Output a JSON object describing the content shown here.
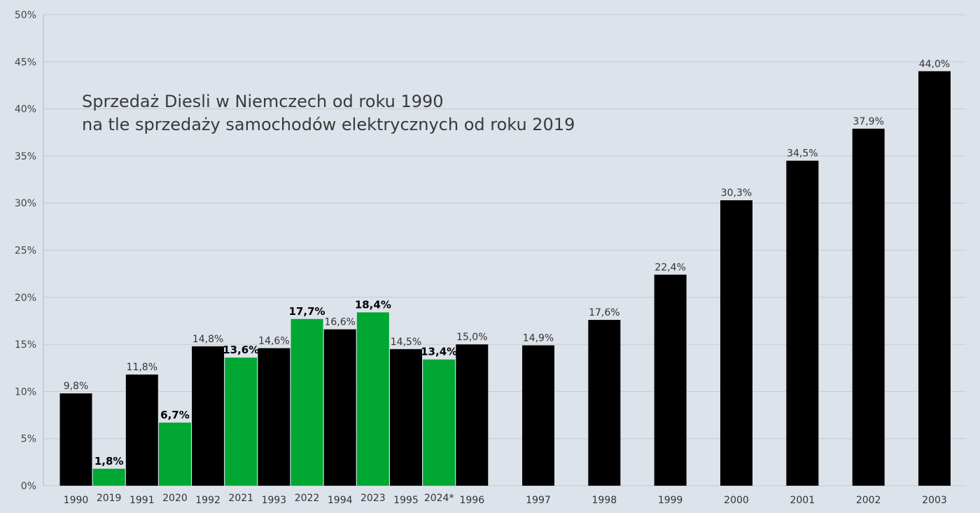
{
  "chart_data": {
    "type": "bar",
    "title": "Sprzedaż Diesli w Niemczech od roku 1990",
    "subtitle": "na tle sprzedaży samochodów elektrycznych od roku 2019",
    "xlabel": "",
    "ylabel": "",
    "ylim": [
      0,
      50
    ],
    "yticks": [
      "0%",
      "5%",
      "10%",
      "15%",
      "20%",
      "25%",
      "30%",
      "35%",
      "40%",
      "45%",
      "50%"
    ],
    "grid": true,
    "series": [
      {
        "color": "#000000",
        "points": [
          {
            "category": "1990",
            "value": 9.8,
            "label": "9,8%"
          },
          {
            "category": "1991",
            "value": 11.8,
            "label": "11,8%"
          },
          {
            "category": "1992",
            "value": 14.8,
            "label": "14,8%"
          },
          {
            "category": "1993",
            "value": 14.6,
            "label": "14,6%"
          },
          {
            "category": "1994",
            "value": 16.6,
            "label": "16,6%"
          },
          {
            "category": "1995",
            "value": 14.5,
            "label": "14,5%"
          },
          {
            "category": "1996",
            "value": 15.0,
            "label": "15,0%"
          },
          {
            "category": "1997",
            "value": 14.9,
            "label": "14,9%"
          },
          {
            "category": "1998",
            "value": 17.6,
            "label": "17,6%"
          },
          {
            "category": "1999",
            "value": 22.4,
            "label": "22,4%"
          },
          {
            "category": "2000",
            "value": 30.3,
            "label": "30,3%"
          },
          {
            "category": "2001",
            "value": 34.5,
            "label": "34,5%"
          },
          {
            "category": "2002",
            "value": 37.9,
            "label": "37,9%"
          },
          {
            "category": "2003",
            "value": 44.0,
            "label": "44,0%"
          }
        ]
      },
      {
        "color": "#00a833",
        "points": [
          {
            "category": "2019",
            "value": 1.8,
            "label": "1,8%"
          },
          {
            "category": "2020",
            "value": 6.7,
            "label": "6,7%"
          },
          {
            "category": "2021",
            "value": 13.6,
            "label": "13,6%"
          },
          {
            "category": "2022",
            "value": 17.7,
            "label": "17,7%"
          },
          {
            "category": "2023",
            "value": 18.4,
            "label": "18,4%"
          },
          {
            "category": "2024*",
            "value": 13.4,
            "label": "13,4%"
          }
        ]
      }
    ],
    "categories": [
      "1990",
      "2019",
      "1991",
      "2020",
      "1992",
      "2021",
      "1993",
      "2022",
      "1994",
      "2023",
      "1995",
      "2024*",
      "1996",
      "1997",
      "1998",
      "1999",
      "2000",
      "2001",
      "2002",
      "2003"
    ]
  },
  "colors": {
    "background": "#dde3eb",
    "gridline": "#c3cad3",
    "diesel": "#000000",
    "electric": "#00a833"
  }
}
